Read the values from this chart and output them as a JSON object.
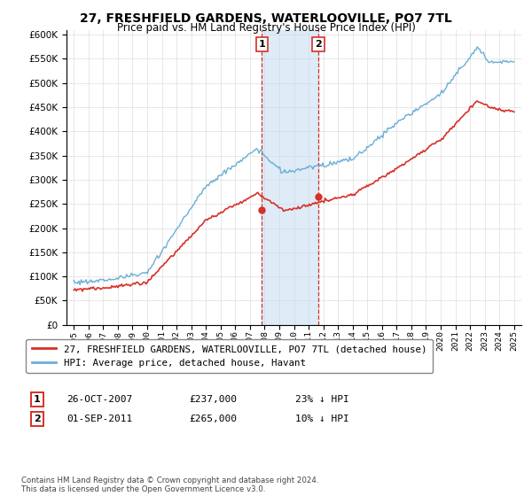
{
  "title": "27, FRESHFIELD GARDENS, WATERLOOVILLE, PO7 7TL",
  "subtitle": "Price paid vs. HM Land Registry's House Price Index (HPI)",
  "legend_line1": "27, FRESHFIELD GARDENS, WATERLOOVILLE, PO7 7TL (detached house)",
  "legend_line2": "HPI: Average price, detached house, Havant",
  "sale1_date": "26-OCT-2007",
  "sale1_price": 237000,
  "sale1_label": "23% ↓ HPI",
  "sale1_year": 2007.82,
  "sale2_date": "01-SEP-2011",
  "sale2_price": 265000,
  "sale2_label": "10% ↓ HPI",
  "sale2_year": 2011.67,
  "note": "Contains HM Land Registry data © Crown copyright and database right 2024.\nThis data is licensed under the Open Government Licence v3.0.",
  "hpi_color": "#6baed6",
  "price_color": "#d73027",
  "shade_color": "#c6dbef",
  "ylim": [
    0,
    610000
  ],
  "yticks": [
    0,
    50000,
    100000,
    150000,
    200000,
    250000,
    300000,
    350000,
    400000,
    450000,
    500000,
    550000,
    600000
  ]
}
